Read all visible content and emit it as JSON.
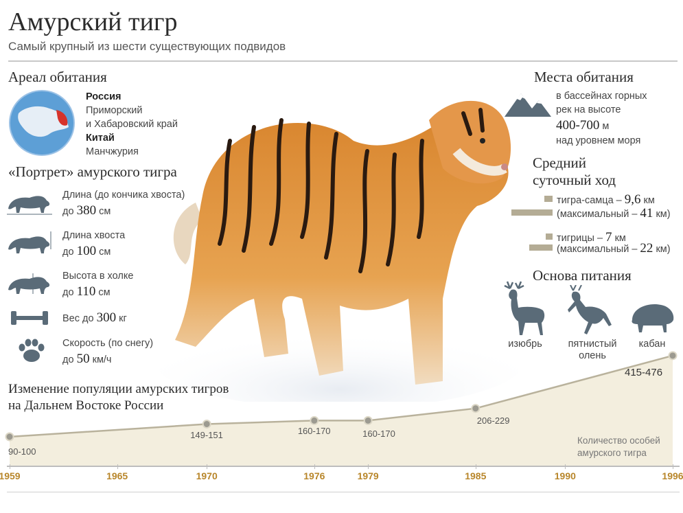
{
  "title": "Амурский тигр",
  "subtitle": "Самый крупный из шести существующих подвидов",
  "areal": {
    "title": "Ареал обитания",
    "country1": "Россия",
    "region1a": "Приморский",
    "region1b": "и Хабаровский край",
    "country2": "Китай",
    "region2": "Манчжурия"
  },
  "portrait": {
    "title": "«Портрет» амурского тигра",
    "items": [
      {
        "icon": "tiger-length-icon",
        "label": "Длина (до кончика хвоста)",
        "prefix": "до",
        "value": "380",
        "unit": "см"
      },
      {
        "icon": "tail-length-icon",
        "label": "Длина хвоста",
        "prefix": "до",
        "value": "100",
        "unit": "см"
      },
      {
        "icon": "shoulder-height-icon",
        "label": "Высота в холке",
        "prefix": "до",
        "value": "110",
        "unit": "см"
      },
      {
        "icon": "dumbbell-icon",
        "label": "Вес до",
        "prefix": "",
        "value": "300",
        "unit": "кг"
      },
      {
        "icon": "paw-icon",
        "label": "Скорость (по снегу)",
        "prefix": "до",
        "value": "50",
        "unit": "км/ч"
      }
    ]
  },
  "habitat": {
    "title": "Места обитания",
    "line1": "в бассейнах горных",
    "line2": "рек на высоте",
    "altitude": "400-700",
    "altitude_unit": "м",
    "line4": "над уровнем моря"
  },
  "daily": {
    "title1": "Средний",
    "title2": "суточный ход",
    "male_label": "тигра-самца –",
    "male_value": "9,6",
    "male_unit": "км",
    "male_max_label": "(максимальный –",
    "male_max_value": "41",
    "male_max_unit": "км)",
    "female_label": "тигрицы –",
    "female_value": "7",
    "female_unit": "км",
    "female_max_label": "(максимальный –",
    "female_max_value": "22",
    "female_max_unit": "км)"
  },
  "food": {
    "title": "Основа питания",
    "items": [
      {
        "icon": "red-deer-icon",
        "label1": "изюбрь",
        "label2": ""
      },
      {
        "icon": "sika-deer-icon",
        "label1": "пятнистый",
        "label2": "олень"
      },
      {
        "icon": "boar-icon",
        "label1": "кабан",
        "label2": ""
      }
    ]
  },
  "population": {
    "title1": "Изменение популяции амурских тигров",
    "title2": "на Дальнем Востоке России",
    "legend1": "Количество особей",
    "legend2": "амурского тигра"
  },
  "chart_data": {
    "type": "area",
    "title": "Изменение популяции амурских тигров на Дальнем Востоке России",
    "years": [
      "1959",
      "1965",
      "1970",
      "1976",
      "1979",
      "1985",
      "1990",
      "1996"
    ],
    "points": [
      {
        "year": 1959,
        "label": "90-100",
        "low": 90,
        "high": 100
      },
      {
        "year": 1970,
        "label": "149-151",
        "low": 149,
        "high": 151
      },
      {
        "year": 1976,
        "label": "160-170",
        "low": 160,
        "high": 170
      },
      {
        "year": 1979,
        "label": "160-170",
        "low": 160,
        "high": 170
      },
      {
        "year": 1985,
        "label": "206-229",
        "low": 206,
        "high": 229
      },
      {
        "year": 1996,
        "label": "415-476",
        "low": 415,
        "high": 476
      }
    ],
    "ylabel": "Количество особей амурского тигра",
    "colors": {
      "fill": "#f1ebdb",
      "line": "#b9b29c",
      "years": "#b8862a"
    }
  }
}
